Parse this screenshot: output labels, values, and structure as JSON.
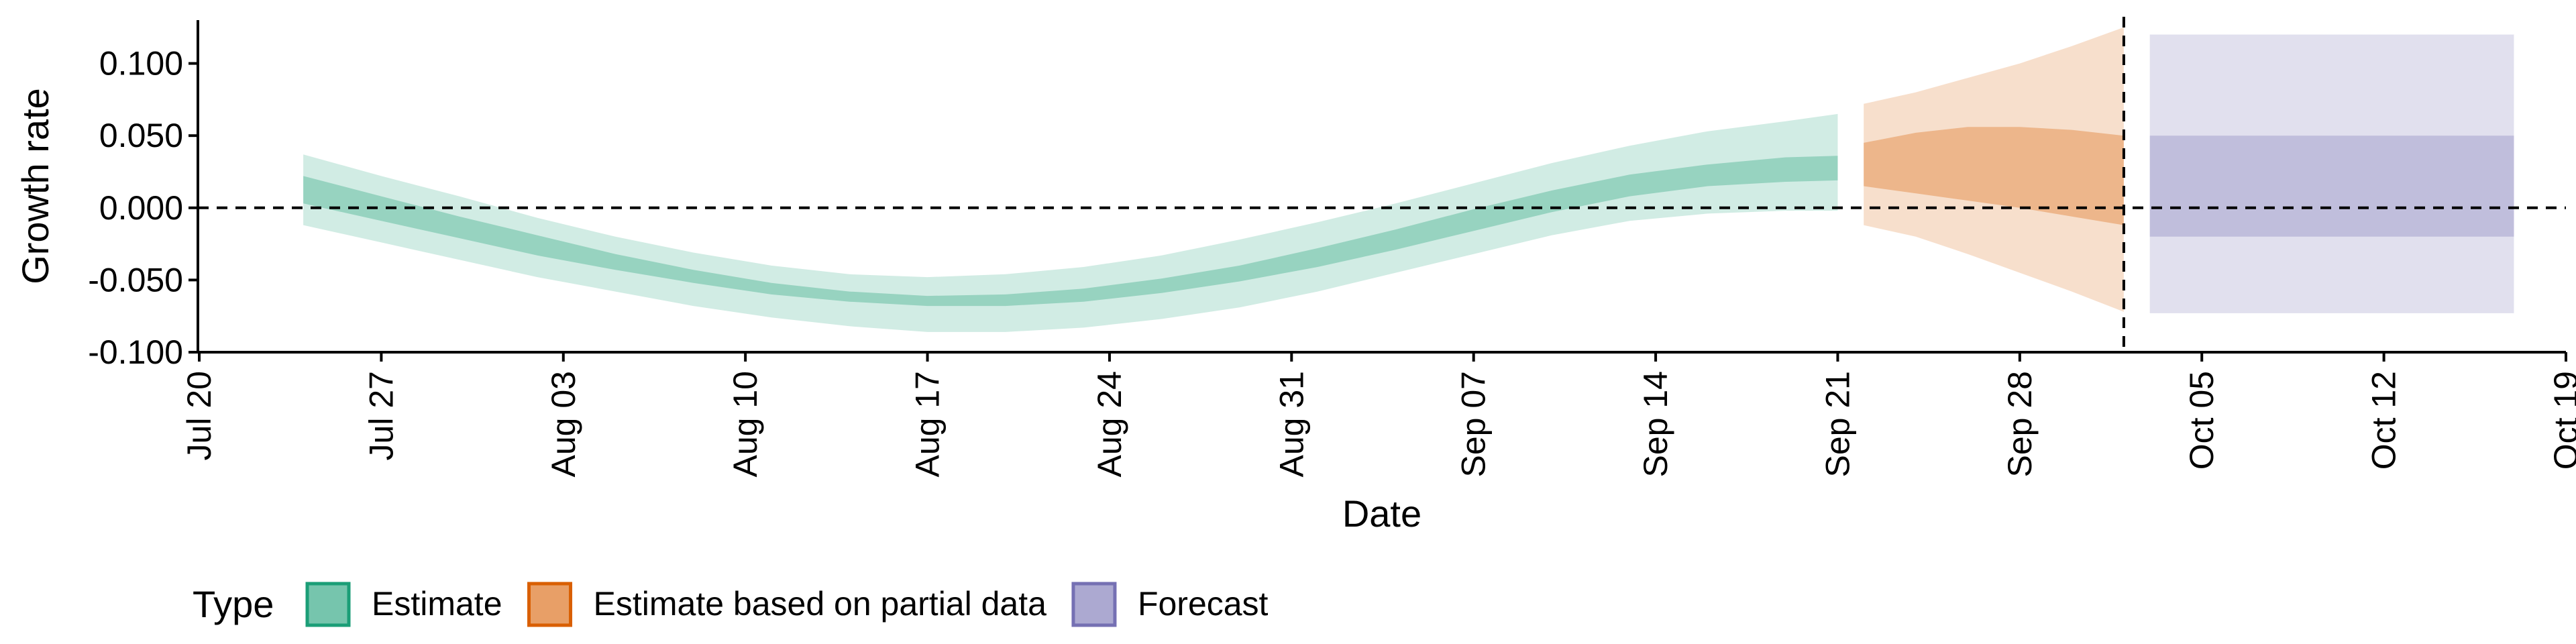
{
  "chart_data": {
    "type": "area",
    "xlabel": "Date",
    "ylabel": "Growth rate",
    "xlim": [
      "2020-07-20",
      "2020-10-19"
    ],
    "ylim": [
      -0.1,
      0.13
    ],
    "x_ticks": [
      "2020-07-20",
      "2020-07-27",
      "2020-08-03",
      "2020-08-10",
      "2020-08-17",
      "2020-08-24",
      "2020-08-31",
      "2020-09-07",
      "2020-09-14",
      "2020-09-21",
      "2020-09-28",
      "2020-10-05",
      "2020-10-12",
      "2020-10-19"
    ],
    "x_tick_labels": [
      "Jul 20",
      "Jul 27",
      "Aug 03",
      "Aug 10",
      "Aug 17",
      "Aug 24",
      "Aug 31",
      "Sep 07",
      "Sep 14",
      "Sep 21",
      "Sep 28",
      "Oct 05",
      "Oct 12",
      "Oct 19"
    ],
    "y_ticks": [
      -0.1,
      -0.05,
      0.0,
      0.05,
      0.1
    ],
    "y_tick_labels": [
      "-0.100",
      "-0.050",
      "0.000",
      "0.050",
      "0.100"
    ],
    "reference_lines": [
      {
        "axis": "y",
        "value": 0.0,
        "style": "dashed"
      },
      {
        "axis": "x",
        "value": "2020-10-02",
        "style": "dashed"
      }
    ],
    "grid": false,
    "legend": {
      "title": "Type",
      "position": "bottom-left",
      "entries": [
        {
          "label": "Estimate",
          "color": "#1b9e77"
        },
        {
          "label": "Estimate based on partial data",
          "color": "#d95f02"
        },
        {
          "label": "Forecast",
          "color": "#7570b3"
        }
      ]
    },
    "series": [
      {
        "name": "Estimate",
        "color": "#1b9e77",
        "x": [
          "2020-07-24",
          "2020-07-27",
          "2020-07-30",
          "2020-08-02",
          "2020-08-05",
          "2020-08-08",
          "2020-08-11",
          "2020-08-14",
          "2020-08-17",
          "2020-08-20",
          "2020-08-23",
          "2020-08-26",
          "2020-08-29",
          "2020-09-01",
          "2020-09-04",
          "2020-09-07",
          "2020-09-10",
          "2020-09-13",
          "2020-09-16",
          "2020-09-19",
          "2020-09-21"
        ],
        "outer_lower": [
          -0.012,
          -0.024,
          -0.036,
          -0.048,
          -0.058,
          -0.068,
          -0.076,
          -0.082,
          -0.086,
          -0.086,
          -0.083,
          -0.077,
          -0.069,
          -0.058,
          -0.045,
          -0.032,
          -0.019,
          -0.009,
          -0.004,
          -0.002,
          -0.002
        ],
        "outer_upper": [
          0.037,
          0.022,
          0.008,
          -0.007,
          -0.02,
          -0.031,
          -0.04,
          -0.046,
          -0.048,
          -0.046,
          -0.041,
          -0.033,
          -0.022,
          -0.01,
          0.003,
          0.017,
          0.031,
          0.043,
          0.053,
          0.06,
          0.065
        ],
        "inner_lower": [
          0.003,
          -0.009,
          -0.021,
          -0.033,
          -0.043,
          -0.052,
          -0.06,
          -0.065,
          -0.068,
          -0.068,
          -0.065,
          -0.059,
          -0.051,
          -0.041,
          -0.029,
          -0.016,
          -0.003,
          0.008,
          0.015,
          0.018,
          0.019
        ],
        "inner_upper": [
          0.022,
          0.008,
          -0.006,
          -0.019,
          -0.032,
          -0.043,
          -0.052,
          -0.058,
          -0.061,
          -0.06,
          -0.056,
          -0.049,
          -0.04,
          -0.028,
          -0.015,
          -0.001,
          0.012,
          0.023,
          0.03,
          0.035,
          0.036
        ]
      },
      {
        "name": "Estimate based on partial data",
        "color": "#d95f02",
        "x": [
          "2020-09-22",
          "2020-09-24",
          "2020-09-26",
          "2020-09-28",
          "2020-09-30",
          "2020-10-02"
        ],
        "outer_lower": [
          -0.012,
          -0.02,
          -0.032,
          -0.045,
          -0.058,
          -0.072
        ],
        "outer_upper": [
          0.072,
          0.08,
          0.09,
          0.1,
          0.112,
          0.125
        ],
        "inner_lower": [
          0.015,
          0.01,
          0.005,
          0.0,
          -0.006,
          -0.012
        ],
        "inner_upper": [
          0.045,
          0.052,
          0.056,
          0.056,
          0.054,
          0.05
        ]
      },
      {
        "name": "Forecast",
        "color": "#7570b3",
        "x": [
          "2020-10-03",
          "2020-10-17"
        ],
        "outer_lower": [
          -0.073,
          -0.073
        ],
        "outer_upper": [
          0.12,
          0.12
        ],
        "inner_lower": [
          -0.02,
          -0.02
        ],
        "inner_upper": [
          0.05,
          0.05
        ]
      }
    ]
  }
}
